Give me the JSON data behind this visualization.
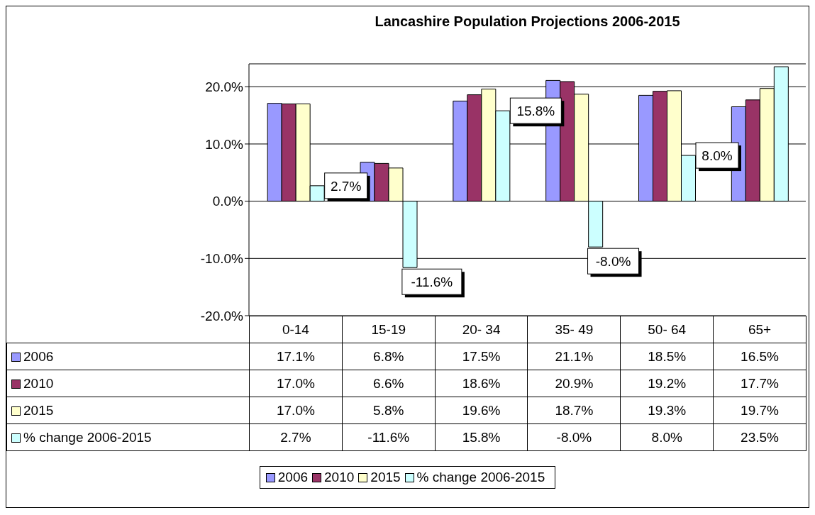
{
  "chart_data": {
    "type": "bar",
    "title": "Lancashire Population Projections 2006-2015",
    "categories": [
      "0-14",
      "15-19",
      "20- 34",
      "35- 49",
      "50- 64",
      "65+"
    ],
    "series": [
      {
        "name": "2006",
        "color": "#9999ff",
        "values": [
          17.1,
          6.8,
          17.5,
          21.1,
          18.5,
          16.5
        ],
        "value_labels": [
          "17.1%",
          "6.8%",
          "17.5%",
          "21.1%",
          "18.5%",
          "16.5%"
        ]
      },
      {
        "name": "2010",
        "color": "#993366",
        "values": [
          17.0,
          6.6,
          18.6,
          20.9,
          19.2,
          17.7
        ],
        "value_labels": [
          "17.0%",
          "6.6%",
          "18.6%",
          "20.9%",
          "19.2%",
          "17.7%"
        ]
      },
      {
        "name": "2015",
        "color": "#ffffcc",
        "values": [
          17.0,
          5.8,
          19.6,
          18.7,
          19.3,
          19.7
        ],
        "value_labels": [
          "17.0%",
          "5.8%",
          "19.6%",
          "18.7%",
          "19.3%",
          "19.7%"
        ]
      },
      {
        "name": "% change 2006-2015",
        "color": "#ccffff",
        "values": [
          2.7,
          -11.6,
          15.8,
          -8.0,
          8.0,
          23.5
        ],
        "value_labels": [
          "2.7%",
          "-11.6%",
          "15.8%",
          "-8.0%",
          "8.0%",
          "23.5%"
        ]
      }
    ],
    "annotations": [
      {
        "text": "2.7%",
        "x": "0-14",
        "y": 2.7
      },
      "-11.6%",
      {
        "text": "15.8%",
        "x": "20- 34",
        "y": 15.8
      },
      "-8.0%",
      {
        "text": "8.0%",
        "x": "50- 64",
        "y": 8.0
      }
    ],
    "ylim": [
      -20,
      24
    ],
    "yticks": [
      {
        "value": -20,
        "label": "-20.0%"
      },
      {
        "value": -10,
        "label": "-10.0%"
      },
      {
        "value": 0,
        "label": "0.0%"
      },
      {
        "value": 10,
        "label": "10.0%"
      },
      {
        "value": 20,
        "label": "20.0%"
      }
    ],
    "grid": "y",
    "legend": "bottom"
  }
}
